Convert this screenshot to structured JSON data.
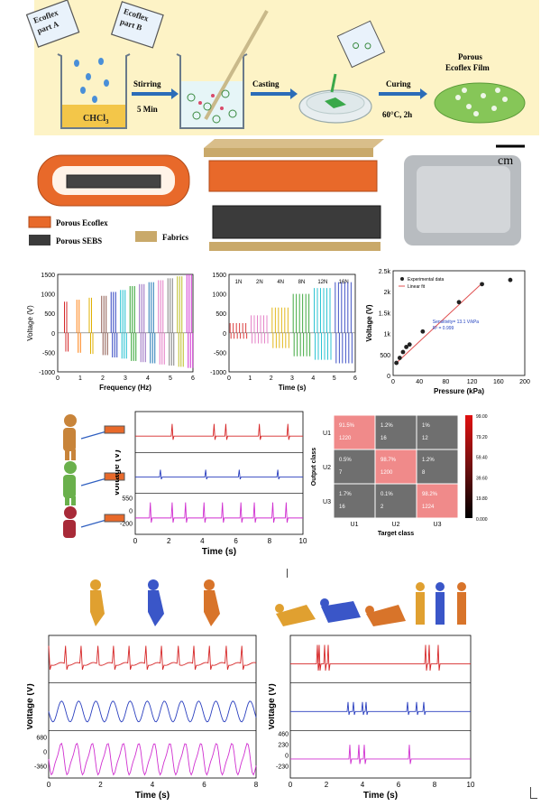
{
  "panel_a": {
    "part_a": [
      "Ecoflex",
      "part A"
    ],
    "part_b": [
      "Ecoflex",
      "part B"
    ],
    "solvent": "CHCl",
    "solvent_sub": "3",
    "step1": [
      "Stirring",
      "5 Min"
    ],
    "step2": "Casting",
    "step3": [
      "Curing",
      "60°C, 2h"
    ],
    "product": [
      "Porous",
      "Ecoflex Film"
    ]
  },
  "panel_b": {
    "legend": [
      "Porous Ecoflex",
      "Porous SEBS",
      "Fabrics"
    ],
    "scale": "cm"
  },
  "colors": {
    "red": "#d62728",
    "blue": "#2a3fbf",
    "magenta": "#d02fd0",
    "bg_yellow": "#fdf3c6",
    "ecoflex": "#e8692a"
  },
  "chart_data": [
    {
      "type": "line",
      "ylabel": "Voltage (V)",
      "xlabel": "Frequency (Hz)",
      "xlim": [
        0,
        6
      ],
      "ylim": [
        -1000,
        1500
      ],
      "yticks": [
        -1000,
        -500,
        0,
        500,
        1000,
        1500
      ],
      "xticks": [
        0,
        1,
        2,
        3,
        4,
        5,
        6
      ],
      "pulse_amplitudes": [
        800,
        850,
        900,
        950,
        1050,
        1100,
        1200,
        1250,
        1300,
        1350,
        1400,
        1450,
        1500
      ]
    },
    {
      "type": "line",
      "ylabel": "",
      "xlabel": "Time (s)",
      "xlim": [
        0,
        6
      ],
      "ylim": [
        -1000,
        1500
      ],
      "yticks": [
        -1000,
        -500,
        0,
        500,
        1000,
        1500
      ],
      "xticks": [
        0,
        1,
        2,
        3,
        4,
        5,
        6
      ],
      "force_labels": [
        "1N",
        "2N",
        "4N",
        "8N",
        "12N",
        "16N"
      ]
    },
    {
      "type": "scatter",
      "ylabel": "Voltage (V)",
      "xlabel": "Pressure (kPa)",
      "xlim": [
        0,
        200
      ],
      "ylim": [
        0,
        2500
      ],
      "yticks": [
        "0",
        "500",
        "1k",
        "1.5k",
        "2k",
        "2.5k"
      ],
      "xticks": [
        0,
        20,
        40,
        60,
        80,
        100,
        120,
        140,
        160,
        180,
        200
      ],
      "xtick_labels": [
        "0",
        "",
        "40",
        "",
        "80",
        "",
        "120",
        "",
        "160",
        "",
        "200"
      ],
      "points": [
        [
          5,
          300
        ],
        [
          10,
          420
        ],
        [
          15,
          560
        ],
        [
          20,
          680
        ],
        [
          25,
          740
        ],
        [
          45,
          1050
        ],
        [
          100,
          1750
        ],
        [
          135,
          2180
        ],
        [
          178,
          2280
        ]
      ],
      "legend": [
        "Experimental data",
        "Linear fit"
      ],
      "annotations": [
        "Sensitivity= 13.1 V/kPa",
        "R² = 0.999"
      ]
    },
    {
      "type": "line",
      "ylabel": "Voltage (V)",
      "xlabel": "Time (s)",
      "xlim": [
        0,
        10
      ],
      "xticks": [
        0,
        2,
        4,
        6,
        8,
        10
      ],
      "yticks_bottom": [
        "550",
        "0",
        "-200"
      ]
    },
    {
      "type": "heatmap",
      "ylabel": "Output class",
      "xlabel": "Target class",
      "classes": [
        "U1",
        "U2",
        "U3"
      ],
      "cells": [
        [
          "91.5%",
          "1220",
          "1.2%",
          "16",
          "1%",
          "12"
        ],
        [
          "0.5%",
          "7",
          "98.7%",
          "1200",
          "1.2%",
          "8"
        ],
        [
          "1.7%",
          "16",
          "0.1%",
          "2",
          "98.2%",
          "1224"
        ]
      ],
      "colorbar": [
        "99.00",
        "79.20",
        "59.40",
        "39.60",
        "19.80",
        "0.000"
      ]
    },
    {
      "type": "line",
      "ylabel": "Voltage (V)",
      "xlabel": "Time (s)",
      "xlim": [
        0,
        8
      ],
      "xticks": [
        0,
        2,
        4,
        6,
        8
      ],
      "yticks_bottom": [
        "680",
        "0",
        "-360"
      ]
    },
    {
      "type": "line",
      "ylabel": "Voltage (V)",
      "xlabel": "Time (s)",
      "xlim": [
        0,
        10
      ],
      "xticks": [
        0,
        2,
        4,
        6,
        8,
        10
      ],
      "yticks_bottom": [
        "460",
        "230",
        "0",
        "-230"
      ]
    }
  ]
}
